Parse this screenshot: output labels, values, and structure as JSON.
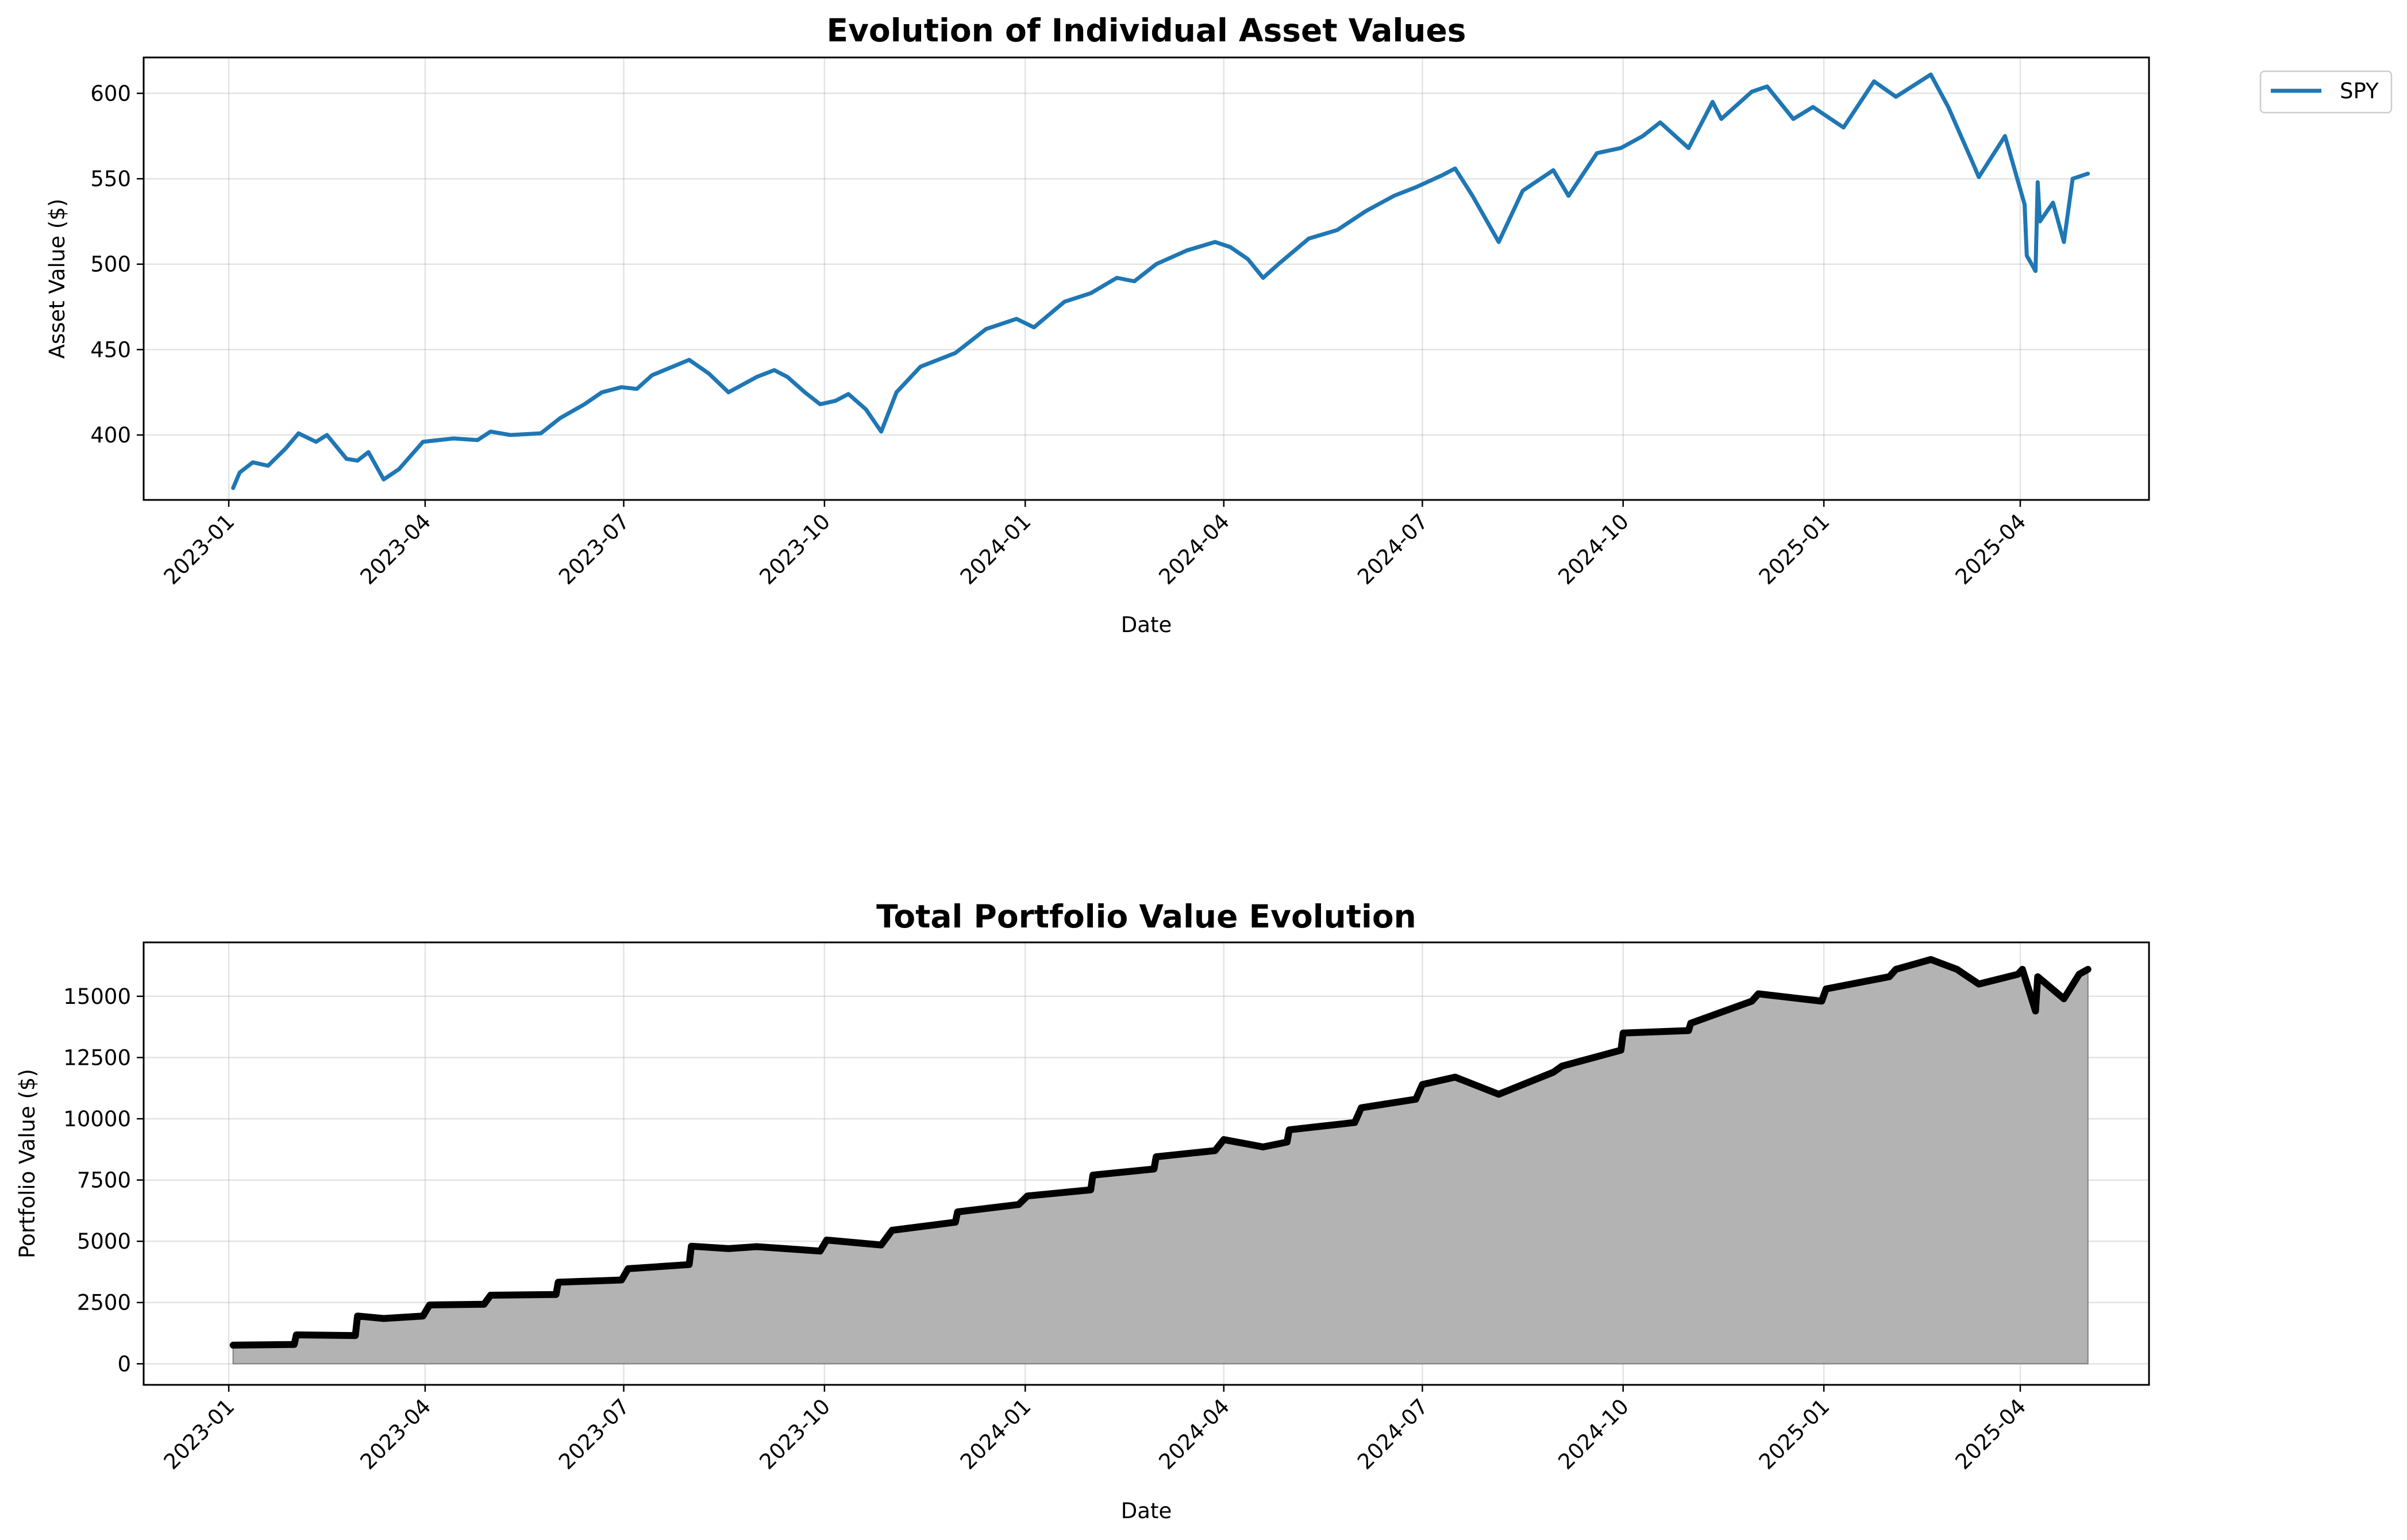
{
  "chart_data": [
    {
      "type": "line",
      "title": "Evolution of Individual Asset Values",
      "xlabel": "Date",
      "ylabel": "Asset Value ($)",
      "xlim": [
        "2022-11-23",
        "2025-05-30"
      ],
      "ylim": [
        362,
        621
      ],
      "yticks": [
        400,
        450,
        500,
        550,
        600
      ],
      "xticks": [
        "2023-01",
        "2023-04",
        "2023-07",
        "2023-10",
        "2024-01",
        "2024-04",
        "2024-07",
        "2024-10",
        "2025-01",
        "2025-04"
      ],
      "grid": true,
      "legend": {
        "position": "outside-top-right",
        "entries": [
          {
            "label": "SPY",
            "color": "#1f77b4"
          }
        ]
      },
      "series": [
        {
          "name": "SPY",
          "color": "#1f77b4",
          "points": [
            [
              "2023-01-03",
              369
            ],
            [
              "2023-01-06",
              378
            ],
            [
              "2023-01-12",
              384
            ],
            [
              "2023-01-19",
              382
            ],
            [
              "2023-01-27",
              392
            ],
            [
              "2023-02-02",
              401
            ],
            [
              "2023-02-10",
              396
            ],
            [
              "2023-02-15",
              400
            ],
            [
              "2023-02-24",
              386
            ],
            [
              "2023-03-01",
              385
            ],
            [
              "2023-03-06",
              390
            ],
            [
              "2023-03-13",
              374
            ],
            [
              "2023-03-20",
              380
            ],
            [
              "2023-03-31",
              396
            ],
            [
              "2023-04-14",
              398
            ],
            [
              "2023-04-25",
              397
            ],
            [
              "2023-05-01",
              402
            ],
            [
              "2023-05-10",
              400
            ],
            [
              "2023-05-24",
              401
            ],
            [
              "2023-06-02",
              410
            ],
            [
              "2023-06-13",
              418
            ],
            [
              "2023-06-21",
              425
            ],
            [
              "2023-06-30",
              428
            ],
            [
              "2023-07-07",
              427
            ],
            [
              "2023-07-14",
              435
            ],
            [
              "2023-07-31",
              444
            ],
            [
              "2023-08-09",
              436
            ],
            [
              "2023-08-18",
              425
            ],
            [
              "2023-08-31",
              434
            ],
            [
              "2023-09-08",
              438
            ],
            [
              "2023-09-14",
              434
            ],
            [
              "2023-09-22",
              425
            ],
            [
              "2023-09-29",
              418
            ],
            [
              "2023-10-06",
              420
            ],
            [
              "2023-10-12",
              424
            ],
            [
              "2023-10-20",
              415
            ],
            [
              "2023-10-27",
              402
            ],
            [
              "2023-11-03",
              425
            ],
            [
              "2023-11-14",
              440
            ],
            [
              "2023-11-30",
              448
            ],
            [
              "2023-12-14",
              462
            ],
            [
              "2023-12-28",
              468
            ],
            [
              "2024-01-05",
              463
            ],
            [
              "2024-01-19",
              478
            ],
            [
              "2024-01-31",
              483
            ],
            [
              "2024-02-12",
              492
            ],
            [
              "2024-02-20",
              490
            ],
            [
              "2024-03-01",
              500
            ],
            [
              "2024-03-15",
              508
            ],
            [
              "2024-03-28",
              513
            ],
            [
              "2024-04-04",
              510
            ],
            [
              "2024-04-12",
              503
            ],
            [
              "2024-04-19",
              492
            ],
            [
              "2024-04-26",
              500
            ],
            [
              "2024-05-10",
              515
            ],
            [
              "2024-05-23",
              520
            ],
            [
              "2024-06-05",
              531
            ],
            [
              "2024-06-18",
              540
            ],
            [
              "2024-06-28",
              545
            ],
            [
              "2024-07-10",
              552
            ],
            [
              "2024-07-16",
              556
            ],
            [
              "2024-07-24",
              540
            ],
            [
              "2024-08-05",
              513
            ],
            [
              "2024-08-16",
              543
            ],
            [
              "2024-08-30",
              555
            ],
            [
              "2024-09-06",
              540
            ],
            [
              "2024-09-19",
              565
            ],
            [
              "2024-09-30",
              568
            ],
            [
              "2024-10-10",
              575
            ],
            [
              "2024-10-18",
              583
            ],
            [
              "2024-10-31",
              568
            ],
            [
              "2024-11-11",
              595
            ],
            [
              "2024-11-15",
              585
            ],
            [
              "2024-11-29",
              601
            ],
            [
              "2024-12-06",
              604
            ],
            [
              "2024-12-18",
              585
            ],
            [
              "2024-12-27",
              592
            ],
            [
              "2025-01-10",
              580
            ],
            [
              "2025-01-24",
              607
            ],
            [
              "2025-02-03",
              598
            ],
            [
              "2025-02-19",
              611
            ],
            [
              "2025-02-27",
              592
            ],
            [
              "2025-03-10",
              560
            ],
            [
              "2025-03-13",
              551
            ],
            [
              "2025-03-25",
              575
            ],
            [
              "2025-04-03",
              535
            ],
            [
              "2025-04-04",
              505
            ],
            [
              "2025-04-08",
              496
            ],
            [
              "2025-04-09",
              548
            ],
            [
              "2025-04-10",
              525
            ],
            [
              "2025-04-16",
              536
            ],
            [
              "2025-04-21",
              513
            ],
            [
              "2025-04-25",
              550
            ],
            [
              "2025-05-02",
              553
            ]
          ]
        }
      ]
    },
    {
      "type": "area",
      "title": "Total Portfolio Value Evolution",
      "xlabel": "Date",
      "ylabel": "Portfolio Value ($)",
      "xlim": [
        "2022-11-23",
        "2025-05-30"
      ],
      "ylim": [
        -860,
        17200
      ],
      "yticks": [
        0,
        2500,
        5000,
        7500,
        10000,
        12500,
        15000
      ],
      "xticks": [
        "2023-01",
        "2023-04",
        "2023-07",
        "2023-10",
        "2024-01",
        "2024-04",
        "2024-07",
        "2024-10",
        "2025-01",
        "2025-04"
      ],
      "grid": true,
      "line_color": "#000000",
      "fill_color": "#b3b3b3",
      "series": [
        {
          "points": [
            [
              "2023-01-03",
              760
            ],
            [
              "2023-01-31",
              790
            ],
            [
              "2023-02-01",
              1180
            ],
            [
              "2023-02-28",
              1150
            ],
            [
              "2023-03-01",
              1950
            ],
            [
              "2023-03-13",
              1850
            ],
            [
              "2023-03-31",
              1950
            ],
            [
              "2023-04-03",
              2400
            ],
            [
              "2023-04-28",
              2430
            ],
            [
              "2023-05-01",
              2800
            ],
            [
              "2023-05-31",
              2830
            ],
            [
              "2023-06-01",
              3330
            ],
            [
              "2023-06-30",
              3420
            ],
            [
              "2023-07-03",
              3880
            ],
            [
              "2023-07-31",
              4050
            ],
            [
              "2023-08-01",
              4800
            ],
            [
              "2023-08-18",
              4700
            ],
            [
              "2023-08-31",
              4780
            ],
            [
              "2023-09-29",
              4600
            ],
            [
              "2023-10-02",
              5050
            ],
            [
              "2023-10-27",
              4850
            ],
            [
              "2023-11-01",
              5450
            ],
            [
              "2023-11-30",
              5780
            ],
            [
              "2023-12-01",
              6200
            ],
            [
              "2023-12-29",
              6500
            ],
            [
              "2024-01-02",
              6850
            ],
            [
              "2024-01-31",
              7100
            ],
            [
              "2024-02-01",
              7700
            ],
            [
              "2024-02-29",
              7950
            ],
            [
              "2024-03-01",
              8450
            ],
            [
              "2024-03-28",
              8700
            ],
            [
              "2024-04-01",
              9150
            ],
            [
              "2024-04-19",
              8850
            ],
            [
              "2024-04-30",
              9050
            ],
            [
              "2024-05-01",
              9550
            ],
            [
              "2024-05-31",
              9850
            ],
            [
              "2024-06-03",
              10450
            ],
            [
              "2024-06-28",
              10800
            ],
            [
              "2024-07-01",
              11400
            ],
            [
              "2024-07-16",
              11700
            ],
            [
              "2024-08-05",
              11000
            ],
            [
              "2024-08-30",
              11900
            ],
            [
              "2024-09-03",
              12150
            ],
            [
              "2024-09-30",
              12800
            ],
            [
              "2024-10-01",
              13500
            ],
            [
              "2024-10-31",
              13600
            ],
            [
              "2024-11-01",
              13900
            ],
            [
              "2024-11-29",
              14800
            ],
            [
              "2024-12-02",
              15100
            ],
            [
              "2024-12-31",
              14800
            ],
            [
              "2025-01-02",
              15300
            ],
            [
              "2025-01-31",
              15800
            ],
            [
              "2025-02-03",
              16100
            ],
            [
              "2025-02-19",
              16500
            ],
            [
              "2025-03-03",
              16100
            ],
            [
              "2025-03-13",
              15500
            ],
            [
              "2025-03-31",
              15900
            ],
            [
              "2025-04-02",
              16100
            ],
            [
              "2025-04-08",
              14400
            ],
            [
              "2025-04-09",
              15800
            ],
            [
              "2025-04-21",
              14900
            ],
            [
              "2025-04-28",
              15900
            ],
            [
              "2025-05-02",
              16100
            ]
          ]
        }
      ]
    }
  ]
}
